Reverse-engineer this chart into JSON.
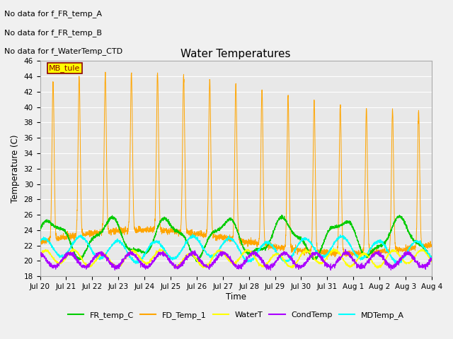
{
  "title": "Water Temperatures",
  "ylabel": "Temperature (C)",
  "xlabel": "Time",
  "ylim": [
    18,
    46
  ],
  "yticks": [
    18,
    20,
    22,
    24,
    26,
    28,
    30,
    32,
    34,
    36,
    38,
    40,
    42,
    44,
    46
  ],
  "figsize": [
    6.4,
    4.8
  ],
  "dpi": 100,
  "no_data_texts": [
    "No data for f_FR_temp_A",
    "No data for f_FR_temp_B",
    "No data for f_WaterTemp_CTD"
  ],
  "mb_tule_label": "MB_tule",
  "legend_entries": [
    {
      "label": "FR_temp_C",
      "color": "#00cc00"
    },
    {
      "label": "FD_Temp_1",
      "color": "#ffa500"
    },
    {
      "label": "WaterT",
      "color": "#ffff00"
    },
    {
      "label": "CondTemp",
      "color": "#aa00ff"
    },
    {
      "label": "MDTemp_A",
      "color": "#00ffff"
    }
  ],
  "bg_color": "#f0f0f0",
  "plot_bg_color": "#e8e8e8",
  "grid_color": "#ffffff"
}
